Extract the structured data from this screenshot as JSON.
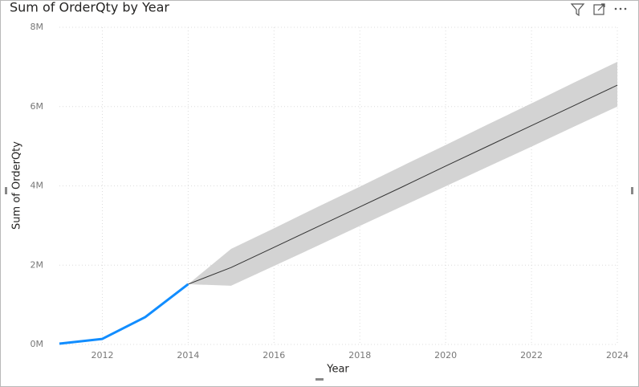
{
  "chart_data": {
    "type": "line",
    "title": "Sum of OrderQty by Year",
    "x_label": "Year",
    "y_label": "Sum of OrderQty",
    "xlim": [
      2011,
      2024
    ],
    "xticks": [
      2012,
      2014,
      2016,
      2018,
      2020,
      2022,
      2024
    ],
    "ylim": [
      0,
      8000000
    ],
    "yticks": [
      {
        "value": 0,
        "label": "0M"
      },
      {
        "value": 2000000,
        "label": "2M"
      },
      {
        "value": 4000000,
        "label": "4M"
      },
      {
        "value": 6000000,
        "label": "6M"
      },
      {
        "value": 8000000,
        "label": "8M"
      }
    ],
    "grid": true,
    "series": [
      {
        "color": "#118DFF",
        "x": [
          2011,
          2012,
          2013,
          2014
        ],
        "values": [
          20000,
          140000,
          690000,
          1520000
        ]
      },
      {
        "color": "#333333",
        "x": [
          2014,
          2015,
          2016,
          2017,
          2018,
          2019,
          2020,
          2021,
          2022,
          2023,
          2024
        ],
        "values": [
          1520000,
          1940000,
          2450000,
          2960000,
          3470000,
          3980000,
          4500000,
          5010000,
          5520000,
          6030000,
          6540000
        ]
      }
    ],
    "band": {
      "color": "#d3d3d3",
      "x": [
        2014,
        2015,
        2016,
        2017,
        2018,
        2019,
        2020,
        2021,
        2022,
        2023,
        2024
      ],
      "upper": [
        1520000,
        2410000,
        2930000,
        3460000,
        3980000,
        4510000,
        5030000,
        5560000,
        6080000,
        6610000,
        7130000
      ],
      "lower": [
        1520000,
        1480000,
        1980000,
        2480000,
        2990000,
        3490000,
        3990000,
        4490000,
        4990000,
        5500000,
        6000000
      ]
    }
  }
}
